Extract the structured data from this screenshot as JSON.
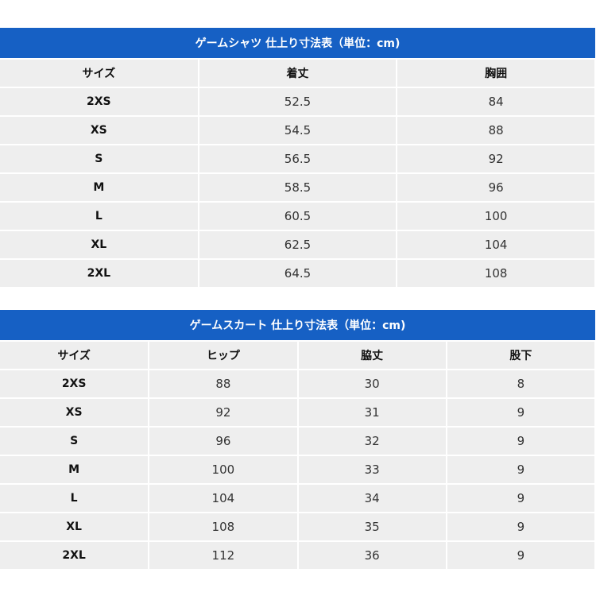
{
  "tables": [
    {
      "title": "ゲームシャツ 仕上り寸法表（単位：cm)",
      "headers": [
        "サイズ",
        "着丈",
        "胸囲"
      ],
      "rows": [
        [
          "2XS",
          52.5,
          84
        ],
        [
          "XS",
          54.5,
          88
        ],
        [
          "S",
          56.5,
          92
        ],
        [
          "M",
          58.5,
          96
        ],
        [
          "L",
          60.5,
          100
        ],
        [
          "XL",
          62.5,
          104
        ],
        [
          "2XL",
          64.5,
          108
        ]
      ]
    },
    {
      "title": "ゲームスカート 仕上り寸法表（単位：cm)",
      "headers": [
        "サイズ",
        "ヒップ",
        "脇丈",
        "股下"
      ],
      "rows": [
        [
          "2XS",
          88,
          30,
          8
        ],
        [
          "XS",
          92,
          31,
          9
        ],
        [
          "S",
          96,
          32,
          9
        ],
        [
          "M",
          100,
          33,
          9
        ],
        [
          "L",
          104,
          34,
          9
        ],
        [
          "XL",
          108,
          35,
          9
        ],
        [
          "2XL",
          112,
          36,
          9
        ]
      ]
    }
  ]
}
